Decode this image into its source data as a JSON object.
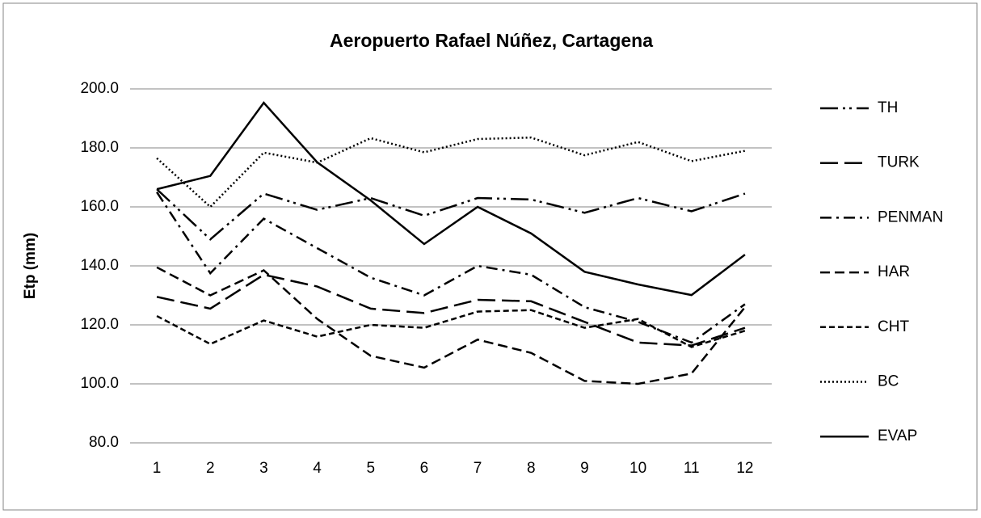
{
  "chart_data": {
    "type": "line",
    "title": "Aeropuerto Rafael Núñez, Cartagena",
    "y_label": "Etp (mm)",
    "categories": [
      "1",
      "2",
      "3",
      "4",
      "5",
      "6",
      "7",
      "8",
      "9",
      "10",
      "11",
      "12"
    ],
    "ylim": [
      80,
      200
    ],
    "yticks": [
      {
        "value": 80,
        "label": "80.0"
      },
      {
        "value": 100,
        "label": "100.0"
      },
      {
        "value": 120,
        "label": "120.0"
      },
      {
        "value": 140,
        "label": "140.0"
      },
      {
        "value": 160,
        "label": "160.0"
      },
      {
        "value": 180,
        "label": "180.0"
      },
      {
        "value": 200,
        "label": "200.0"
      }
    ],
    "grid": true,
    "legend": "right",
    "series": [
      {
        "name": "TH",
        "color": "#000000",
        "dash": "22 6 3 5 3 6",
        "values": [
          166,
          149,
          164.5,
          159,
          163,
          157,
          163,
          162.5,
          158,
          163,
          158.5,
          164.5
        ]
      },
      {
        "name": "TURK",
        "color": "#000000",
        "dash": "22 8",
        "values": [
          129.5,
          125.5,
          137,
          133,
          125.5,
          124,
          128.5,
          128,
          121,
          114,
          113,
          119
        ]
      },
      {
        "name": "PENMAN",
        "color": "#000000",
        "dash": "14 6 3 6",
        "values": [
          165,
          137.5,
          156,
          146,
          136,
          130,
          140,
          137,
          126,
          121,
          114,
          127
        ]
      },
      {
        "name": "HAR",
        "color": "#000000",
        "dash": "12 6",
        "values": [
          139.5,
          130,
          138.5,
          122,
          109.5,
          105.5,
          115,
          110.5,
          101,
          100,
          103.5,
          126
        ]
      },
      {
        "name": "CHT",
        "color": "#000000",
        "dash": "7 4",
        "values": [
          123,
          113.5,
          121.5,
          116,
          120,
          119,
          124.5,
          125,
          119,
          122,
          112.5,
          118
        ]
      },
      {
        "name": "BC",
        "color": "#000000",
        "dash": "2 3",
        "values": [
          176.5,
          160,
          178.4,
          175,
          183.3,
          178.5,
          183,
          183.5,
          177.5,
          182,
          175.5,
          179
        ]
      },
      {
        "name": "EVAP",
        "color": "#000000",
        "dash": "",
        "values": [
          166,
          170.5,
          195.3,
          175.1,
          162.2,
          147.4,
          160,
          151,
          138,
          133.7,
          130.1,
          143.8
        ]
      }
    ]
  }
}
